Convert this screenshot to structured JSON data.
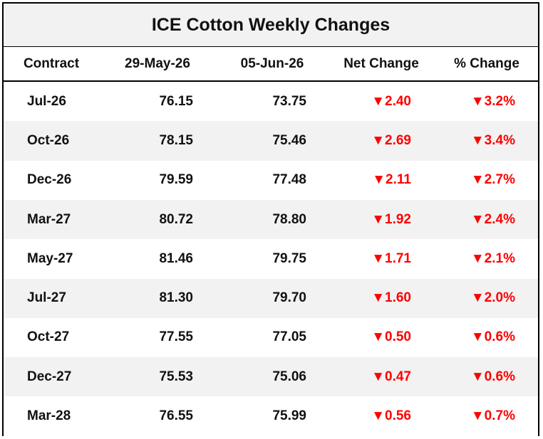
{
  "header": {
    "title": "ICE Cotton Weekly Changes"
  },
  "table": {
    "columns": [
      "Contract",
      "29-May-26",
      "05-Jun-26",
      "Net Change",
      "% Change"
    ],
    "rows": [
      [
        "Jul-26",
        "76.15",
        "73.75",
        "▼2.40",
        "▼3.2%"
      ],
      [
        "Oct-26",
        "78.15",
        "75.46",
        "▼2.69",
        "▼3.4%"
      ],
      [
        "Dec-26",
        "79.59",
        "77.48",
        "▼2.11",
        "▼2.7%"
      ],
      [
        "Mar-27",
        "80.72",
        "78.80",
        "▼1.92",
        "▼2.4%"
      ],
      [
        "May-27",
        "81.46",
        "79.75",
        "▼1.71",
        "▼2.1%"
      ],
      [
        "Jul-27",
        "81.30",
        "79.70",
        "▼1.60",
        "▼2.0%"
      ],
      [
        "Oct-27",
        "77.55",
        "77.05",
        "▼0.50",
        "▼0.6%"
      ],
      [
        "Dec-27",
        "75.53",
        "75.06",
        "▼0.47",
        "▼0.6%"
      ],
      [
        "Mar-28",
        "76.55",
        "75.99",
        "▼0.56",
        "▼0.7%"
      ]
    ]
  }
}
